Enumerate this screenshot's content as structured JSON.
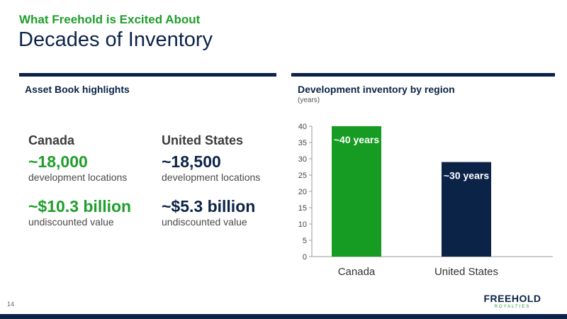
{
  "header": {
    "kicker": "What Freehold is Excited About",
    "title": "Decades of Inventory"
  },
  "left_panel": {
    "title": "Asset Book highlights",
    "columns": [
      {
        "heading": "Canada",
        "locations_value": "~18,000",
        "locations_label": "development locations",
        "value_value": "~$10.3 billion",
        "value_label": "undiscounted value"
      },
      {
        "heading": "United States",
        "locations_value": "~18,500",
        "locations_label": "development locations",
        "value_value": "~$5.3 billion",
        "value_label": "undiscounted value"
      }
    ]
  },
  "right_panel": {
    "title": "Development inventory by region",
    "subtitle": "(years)"
  },
  "chart_data": {
    "type": "bar",
    "title": "Development inventory by region",
    "categories": [
      "Canada",
      "United States"
    ],
    "values": [
      40,
      29
    ],
    "data_labels": [
      "~40 years",
      "~30 years"
    ],
    "colors": [
      "#169c22",
      "#0c2348"
    ],
    "ylim": [
      0,
      40
    ],
    "yticks": [
      0,
      5,
      10,
      15,
      20,
      25,
      30,
      35,
      40
    ],
    "grid": false,
    "legend": "none"
  },
  "footer": {
    "page_number": "14",
    "logo_main": "FREEHOLD",
    "logo_sub": "ROYALTIES"
  },
  "colors": {
    "navy": "#0c2348",
    "green": "#1e9e2a"
  }
}
